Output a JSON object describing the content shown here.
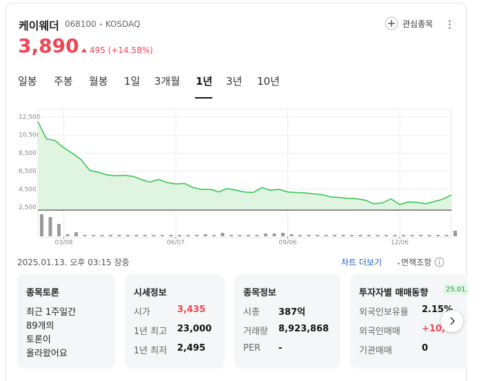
{
  "header": {
    "name": "케이웨더",
    "code": "068100",
    "market": "KOSDAQ",
    "watch": "관심종목",
    "price": "3,890",
    "change": "495",
    "change_pct": "(+14.58%)"
  },
  "tabs": [
    "일봉",
    "주봉",
    "월봉",
    "1일",
    "3개월",
    "1년",
    "3년",
    "10년"
  ],
  "active_tab": 5,
  "chart_data": {
    "type": "line",
    "categories": [
      null,
      null,
      null,
      "03/08",
      null,
      null,
      null,
      null,
      null,
      null,
      null,
      null,
      null,
      null,
      null,
      null,
      "06/07",
      null,
      null,
      null,
      null,
      null,
      null,
      null,
      null,
      null,
      null,
      null,
      null,
      "09/06",
      null,
      null,
      null,
      null,
      null,
      null,
      null,
      null,
      null,
      null,
      null,
      null,
      "12/06",
      null,
      null,
      null,
      null,
      null,
      null
    ],
    "series": [
      {
        "color": "#2fc245",
        "values": [
          12000,
          10100,
          9900,
          9100,
          8500,
          7800,
          6600,
          6400,
          6100,
          6000,
          6050,
          5950,
          5600,
          5300,
          5600,
          5250,
          5100,
          5150,
          4700,
          4500,
          4500,
          4200,
          4600,
          4400,
          4200,
          4150,
          4700,
          4400,
          4500,
          4200,
          4150,
          4100,
          4000,
          3900,
          3650,
          3600,
          3500,
          3450,
          3300,
          2900,
          3000,
          3450,
          2800,
          3100,
          3050,
          2900,
          3150,
          3400,
          3890
        ]
      }
    ],
    "volume": {
      "color": "#9a9a9a",
      "values": [
        3.2,
        2.8,
        1.8,
        0.3,
        0.6,
        0.2,
        0.2,
        0.2,
        0.2,
        0.2,
        0.2,
        0.2,
        0.2,
        0.2,
        0.2,
        0.2,
        0.2,
        0.2,
        0.2,
        0.3,
        0.2,
        0.5,
        0.2,
        0.2,
        0.2,
        0.2,
        0.4,
        0.4,
        0.5,
        0.3,
        0.2,
        0.2,
        0.2,
        0.2,
        0.2,
        0.2,
        0.2,
        0.2,
        0.2,
        0.2,
        0.2,
        0.2,
        0.2,
        0.2,
        0.2,
        0.2,
        0.2,
        0.2,
        0.8
      ]
    },
    "ylim": [
      2500,
      12500
    ],
    "yticks": [
      {
        "value": 2500,
        "label": "2,500"
      },
      {
        "value": 4500,
        "label": "4,500"
      },
      {
        "value": 6500,
        "label": "6,500"
      },
      {
        "value": 8500,
        "label": "8,500"
      },
      {
        "value": 10500,
        "label": "10,500"
      },
      {
        "value": 12500,
        "label": "12,500"
      }
    ],
    "grid": true
  },
  "footer": {
    "time": "2025.01.13. 오후 03:15 장중",
    "more": "차트 더보기",
    "disclaimer": "면책조항"
  },
  "cards": [
    {
      "title": "종목토론",
      "lines": [
        "최근 1주일간",
        "89개의",
        "토론이",
        "올라왔어요"
      ]
    },
    {
      "title": "시세정보",
      "rows": [
        {
          "label": "시가",
          "value": "3,435"
        },
        {
          "label": "1년 최고",
          "value": "23,000"
        },
        {
          "label": "1년 최저",
          "value": "2,495"
        }
      ]
    },
    {
      "title": "종목정보",
      "rows": [
        {
          "label": "시총",
          "value": "387억"
        },
        {
          "label": "거래량",
          "value": "8,923,868"
        },
        {
          "label": "PER",
          "value": "-"
        }
      ]
    },
    {
      "title": "투자자별 매매동향",
      "badge": "25.01.",
      "rows": [
        {
          "label": "외국인보유율",
          "value": "2.15%"
        },
        {
          "label": "외국인매매",
          "value": "+10,"
        },
        {
          "label": "기관매매",
          "value": "0"
        }
      ]
    }
  ]
}
